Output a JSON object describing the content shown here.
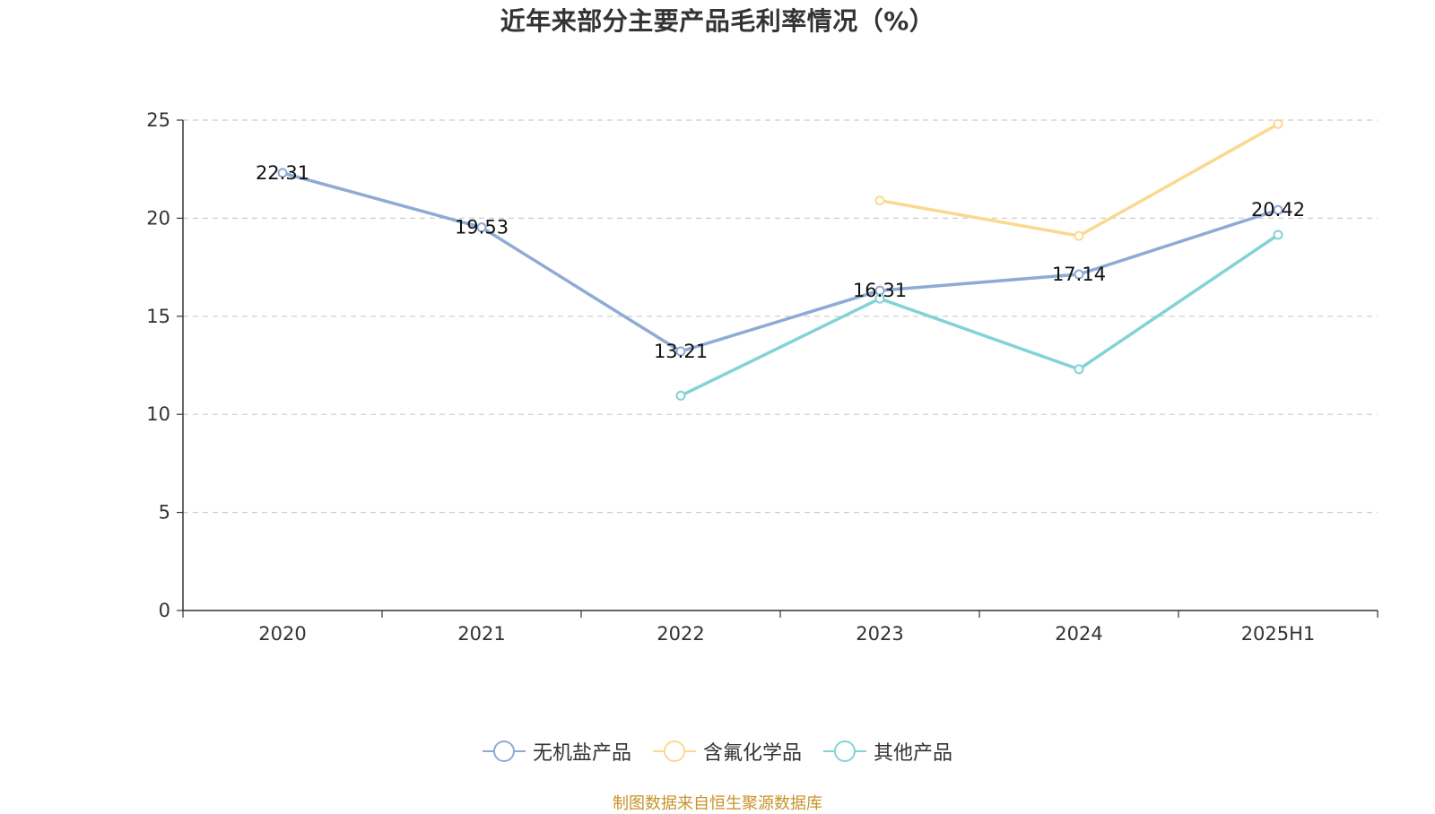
{
  "chart_data": {
    "type": "line",
    "title": "近年来部分主要产品毛利率情况（%）",
    "categories": [
      "2020",
      "2021",
      "2022",
      "2023",
      "2024",
      "2025H1"
    ],
    "ylim": [
      0,
      25
    ],
    "yticks": [
      0,
      5,
      10,
      15,
      20,
      25
    ],
    "grid": true,
    "legend_position": "bottom",
    "series": [
      {
        "name": "无机盐产品",
        "color": "#8eaad6",
        "values": [
          22.31,
          19.53,
          13.21,
          16.31,
          17.14,
          20.42
        ],
        "labels": [
          "22.31",
          "19.53",
          "13.21",
          "16.31",
          "17.14",
          "20.42"
        ]
      },
      {
        "name": "含氟化学品",
        "color": "#fad98f",
        "values": [
          null,
          null,
          null,
          20.9,
          19.1,
          24.8
        ],
        "labels": []
      },
      {
        "name": "其他产品",
        "color": "#82d3d6",
        "values": [
          null,
          null,
          10.95,
          15.9,
          12.3,
          19.15
        ],
        "labels": []
      }
    ],
    "source": "制图数据来自恒生聚源数据库"
  }
}
